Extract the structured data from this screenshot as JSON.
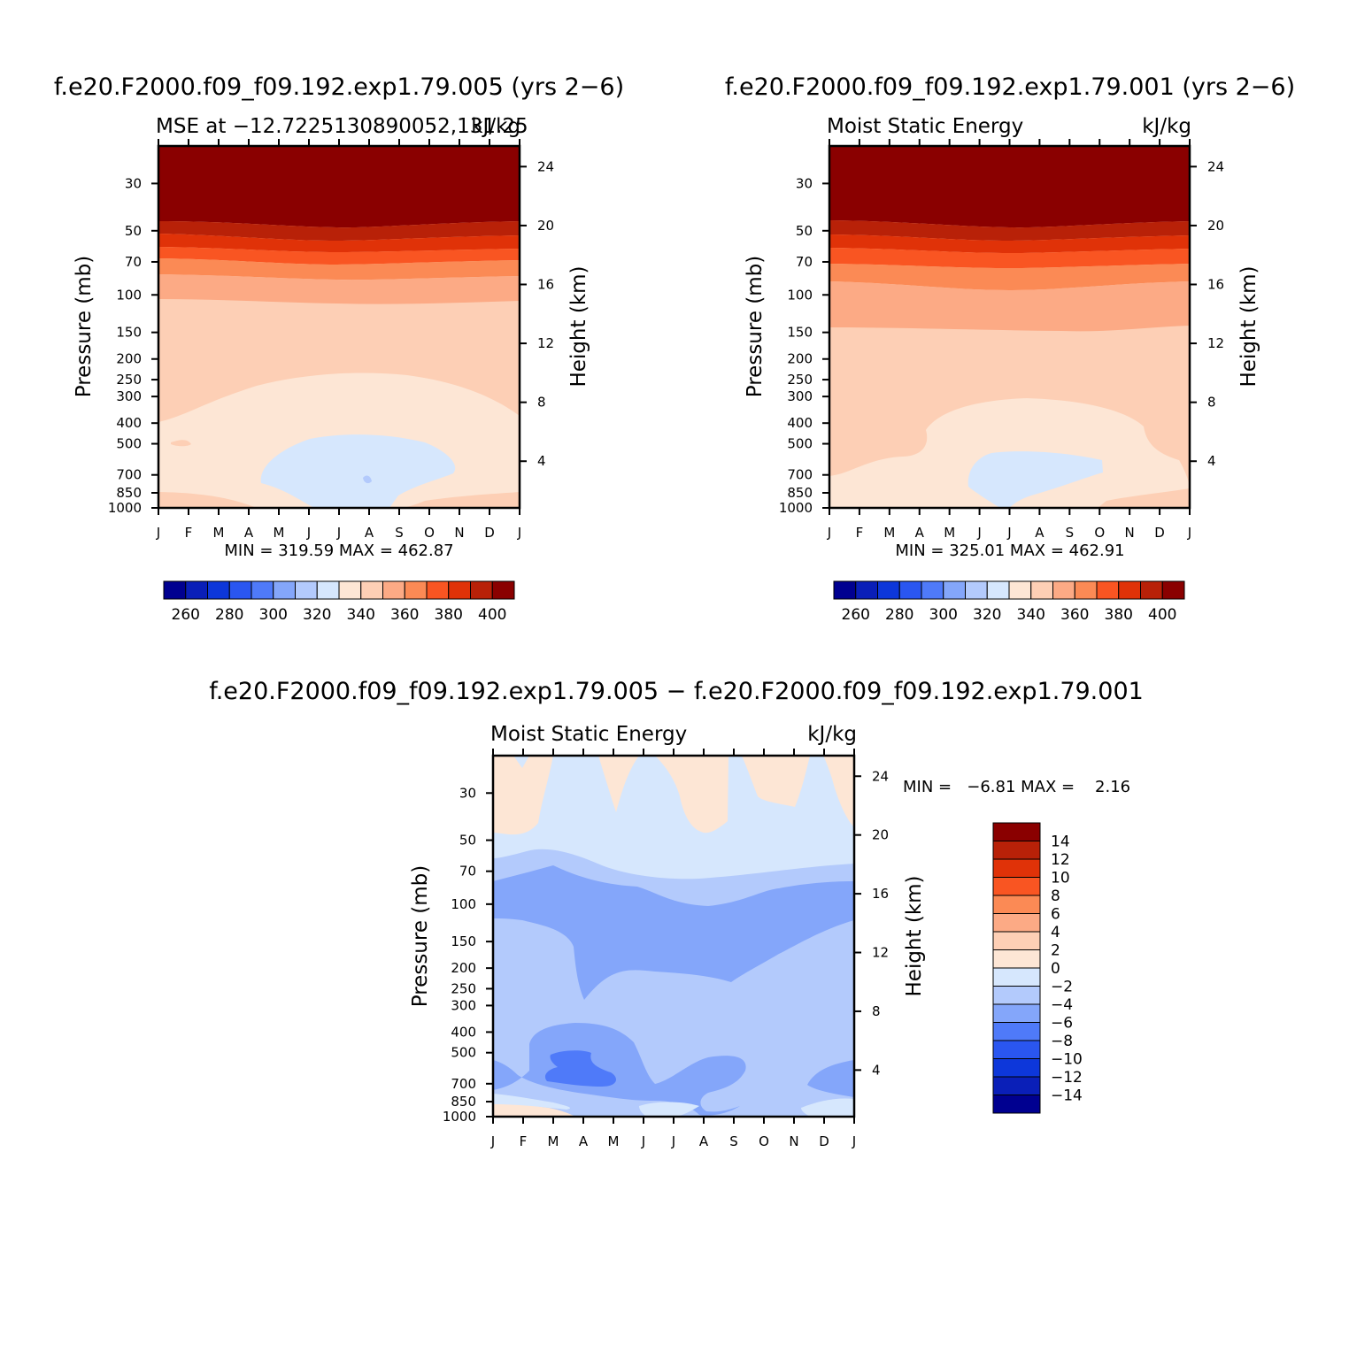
{
  "charts": {
    "top_left": {
      "main_title": "f.e20.F2000.f09_f09.192.exp1.79.005 (yrs 2−6)",
      "left_subtitle": "MSE at −12.7225130890052,131.25",
      "right_subtitle": "kJ/kg",
      "ylabel": "Pressure (mb)",
      "ylabel_right": "Height (km)",
      "minmax": "MIN = 319.59 MAX = 462.87"
    },
    "top_right": {
      "main_title": "f.e20.F2000.f09_f09.192.exp1.79.001 (yrs 2−6)",
      "left_subtitle": "Moist Static Energy",
      "right_subtitle": "kJ/kg",
      "ylabel": "Pressure (mb)",
      "ylabel_right": "Height (km)",
      "minmax": "MIN = 325.01 MAX = 462.91"
    },
    "bottom": {
      "main_title": "f.e20.F2000.f09_f09.192.exp1.79.005 − f.e20.F2000.f09_f09.192.exp1.79.001",
      "left_subtitle": "Moist Static Energy",
      "right_subtitle": "kJ/kg",
      "ylabel": "Pressure (mb)",
      "ylabel_right": "Height (km)",
      "minmax": "MIN =   −6.81 MAX =    2.16"
    }
  },
  "chart_data": [
    {
      "type": "heatmap",
      "panel": "top_left",
      "title": "f.e20.F2000.f09_f09.192.exp1.79.005 (yrs 2−6)",
      "subtitle": "MSE at −12.7225130890052,131.25",
      "units": "kJ/kg",
      "xlabel": "",
      "ylabel": "Pressure (mb)",
      "y2label": "Height (km)",
      "x_ticks": [
        "J",
        "F",
        "M",
        "A",
        "M",
        "J",
        "J",
        "A",
        "S",
        "O",
        "N",
        "D",
        "J"
      ],
      "y_ticks": [
        30,
        50,
        70,
        100,
        150,
        200,
        250,
        300,
        400,
        500,
        700,
        850,
        1000
      ],
      "y2_ticks": [
        4,
        8,
        12,
        16,
        20,
        24
      ],
      "y_scale": "log, inverted",
      "ylim": [
        1000,
        20
      ],
      "min": 319.59,
      "max": 462.87,
      "levels_min_pressure_mb": {
        "above_400": [
          55,
          63,
          72,
          85,
          105,
          150,
          280,
          560
        ]
      },
      "colorbar": {
        "orientation": "horizontal",
        "labels": [
          "260",
          "280",
          "300",
          "320",
          "340",
          "360",
          "380",
          "400"
        ],
        "colors": [
          "#000090",
          "#0a1fb8",
          "#0d37da",
          "#2a56f0",
          "#4f7af9",
          "#84a6fa",
          "#b3cafc",
          "#d6e7fd",
          "#fde6d5",
          "#fdcfb5",
          "#fcaa85",
          "#fb8a55",
          "#f95522",
          "#e03208",
          "#b82108",
          "#8a0000"
        ]
      }
    },
    {
      "type": "heatmap",
      "panel": "top_right",
      "title": "f.e20.F2000.f09_f09.192.exp1.79.001 (yrs 2−6)",
      "subtitle": "Moist Static Energy",
      "units": "kJ/kg",
      "xlabel": "",
      "ylabel": "Pressure (mb)",
      "y2label": "Height (km)",
      "x_ticks": [
        "J",
        "F",
        "M",
        "A",
        "M",
        "J",
        "J",
        "A",
        "S",
        "O",
        "N",
        "D",
        "J"
      ],
      "y_ticks": [
        30,
        50,
        70,
        100,
        150,
        200,
        250,
        300,
        400,
        500,
        700,
        850,
        1000
      ],
      "y2_ticks": [
        4,
        8,
        12,
        16,
        20,
        24
      ],
      "y_scale": "log, inverted",
      "ylim": [
        1000,
        20
      ],
      "min": 325.01,
      "max": 462.91,
      "colorbar": {
        "orientation": "horizontal",
        "labels": [
          "260",
          "280",
          "300",
          "320",
          "340",
          "360",
          "380",
          "400"
        ],
        "colors": [
          "#000090",
          "#0a1fb8",
          "#0d37da",
          "#2a56f0",
          "#4f7af9",
          "#84a6fa",
          "#b3cafc",
          "#d6e7fd",
          "#fde6d5",
          "#fdcfb5",
          "#fcaa85",
          "#fb8a55",
          "#f95522",
          "#e03208",
          "#b82108",
          "#8a0000"
        ]
      }
    },
    {
      "type": "heatmap",
      "panel": "bottom",
      "title": "f.e20.F2000.f09_f09.192.exp1.79.005 − f.e20.F2000.f09_f09.192.exp1.79.001",
      "subtitle": "Moist Static Energy",
      "units": "kJ/kg",
      "xlabel": "",
      "ylabel": "Pressure (mb)",
      "y2label": "Height (km)",
      "x_ticks": [
        "J",
        "F",
        "M",
        "A",
        "M",
        "J",
        "J",
        "A",
        "S",
        "O",
        "N",
        "D",
        "J"
      ],
      "y_ticks": [
        30,
        50,
        70,
        100,
        150,
        200,
        250,
        300,
        400,
        500,
        700,
        850,
        1000
      ],
      "y2_ticks": [
        4,
        8,
        12,
        16,
        20,
        24
      ],
      "y_scale": "log, inverted",
      "ylim": [
        1000,
        20
      ],
      "min": -6.81,
      "max": 2.16,
      "colorbar": {
        "orientation": "vertical",
        "labels": [
          "14",
          "12",
          "10",
          "8",
          "6",
          "4",
          "2",
          "0",
          "−2",
          "−4",
          "−6",
          "−8",
          "−10",
          "−12",
          "−14"
        ],
        "colors": [
          "#8a0000",
          "#b82108",
          "#e03208",
          "#f95522",
          "#fb8a55",
          "#fcaa85",
          "#fdcfb5",
          "#fde6d5",
          "#d6e7fd",
          "#b3cafc",
          "#84a6fa",
          "#4f7af9",
          "#2a56f0",
          "#0d37da",
          "#0a1fb8",
          "#000090"
        ]
      }
    }
  ]
}
